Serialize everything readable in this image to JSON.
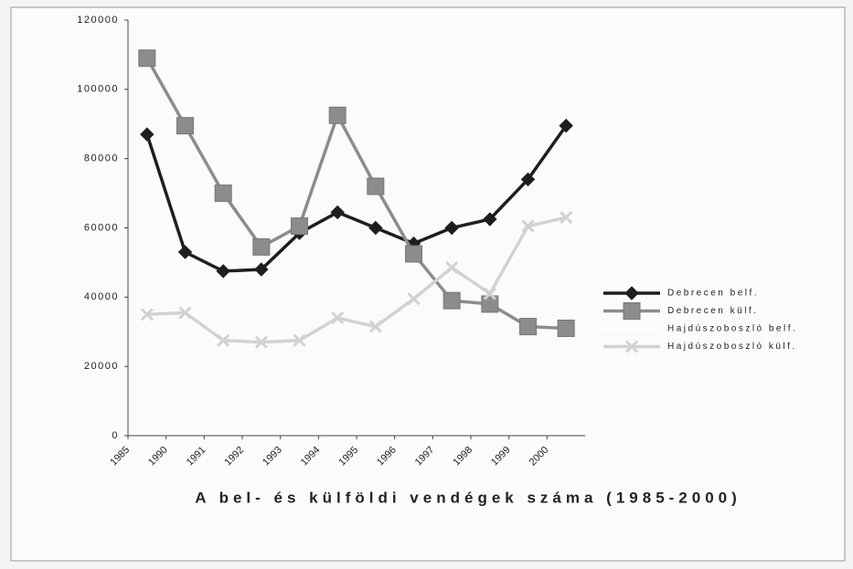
{
  "chart_data": {
    "type": "line",
    "title": "A bel- és külföldi vendégek száma (1985-2000)",
    "categories": [
      "1985",
      "1990",
      "1991",
      "1992",
      "1993",
      "1994",
      "1995",
      "1996",
      "1997",
      "1998",
      "1999",
      "2000"
    ],
    "series": [
      {
        "name": "Debrecen belf.",
        "color": "#1e1e1e",
        "marker": "diamond",
        "values": [
          87000,
          53000,
          47500,
          48000,
          58500,
          64500,
          60000,
          55500,
          60000,
          62500,
          74000,
          89500
        ]
      },
      {
        "name": "Debrecen külf.",
        "color": "#8c8c8c",
        "marker": "square",
        "values": [
          109000,
          89500,
          70000,
          54500,
          60500,
          92500,
          72000,
          52500,
          39000,
          38000,
          31500,
          31000
        ]
      },
      {
        "name": "Hajdúszoboszló belf.",
        "color": "#ffffff",
        "marker": "none",
        "values": [
          null,
          null,
          null,
          null,
          null,
          null,
          null,
          null,
          null,
          null,
          null,
          null
        ]
      },
      {
        "name": "Hajdúszoboszló külf.",
        "color": "#d2d2d2",
        "marker": "x",
        "values": [
          35000,
          35500,
          27500,
          27000,
          27500,
          34000,
          31500,
          39500,
          48500,
          41000,
          60500,
          63000
        ]
      }
    ],
    "ylim": [
      0,
      120000
    ],
    "yticks": [
      0,
      20000,
      40000,
      60000,
      80000,
      100000,
      120000
    ],
    "legend": "right"
  }
}
